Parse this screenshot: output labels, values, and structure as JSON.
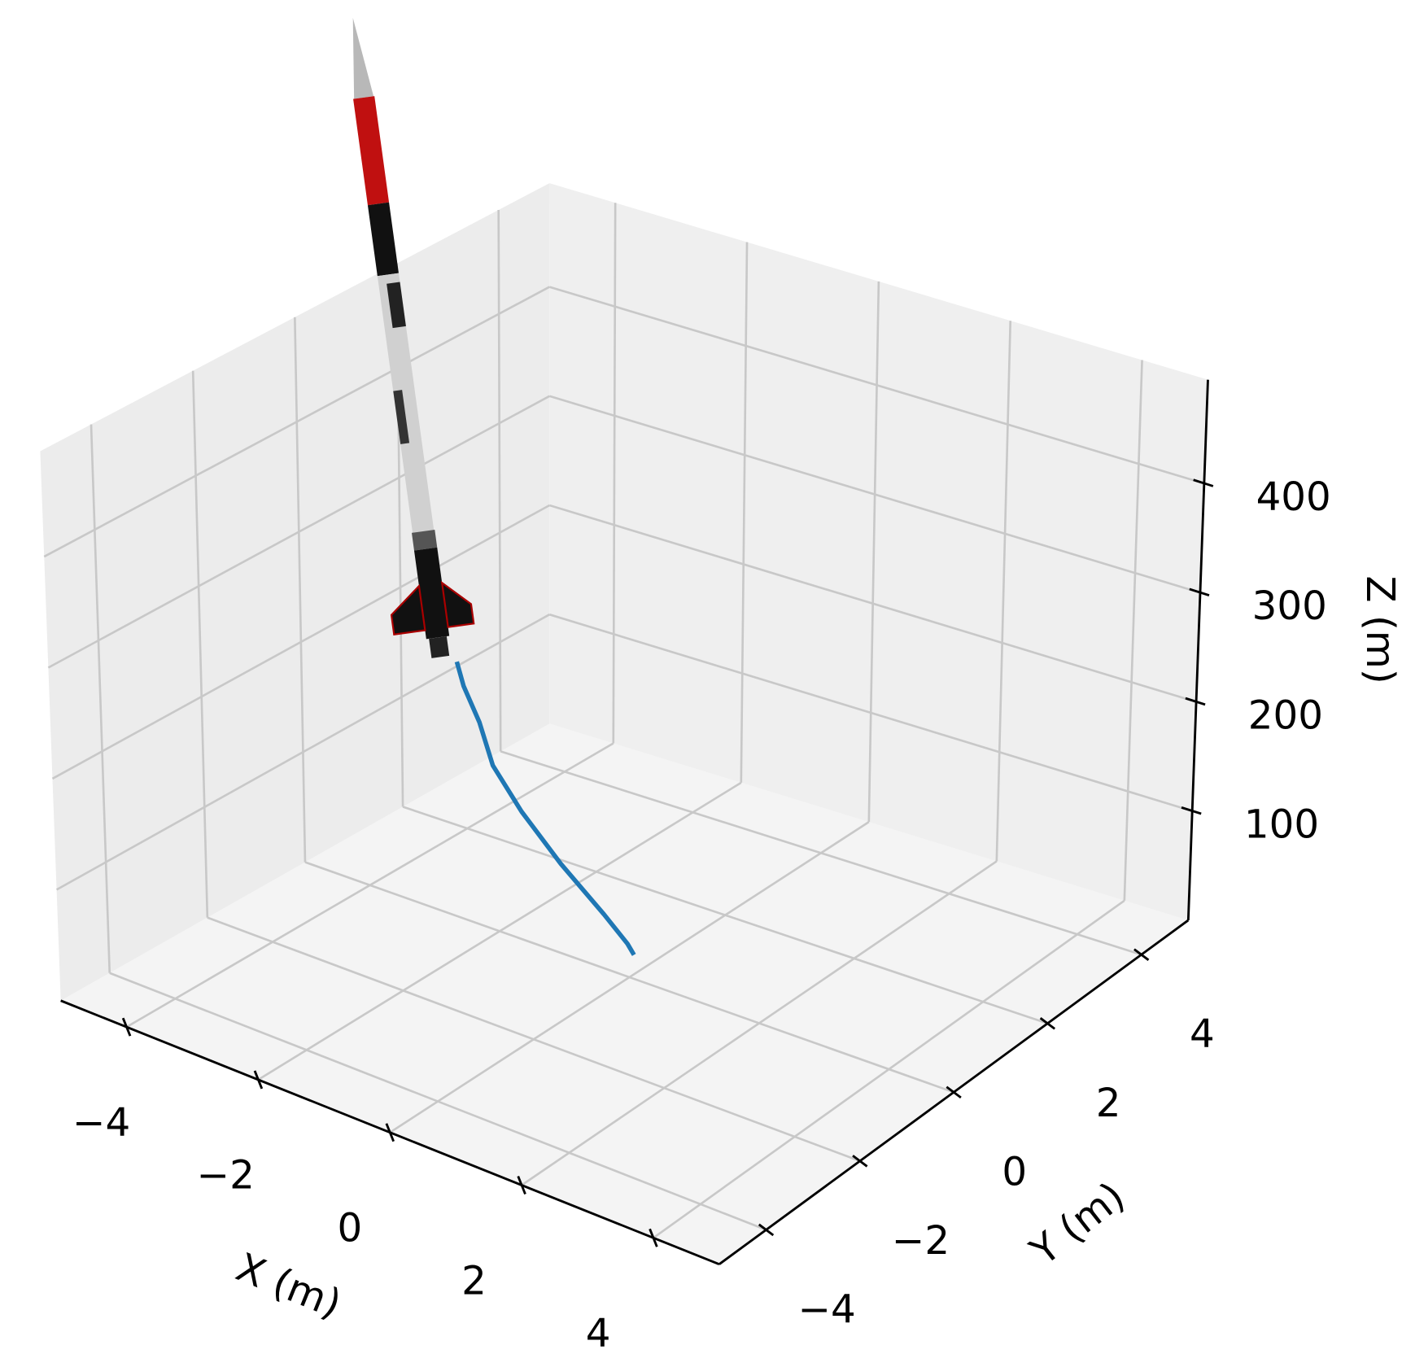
{
  "chart_data": {
    "type": "line3d",
    "xlabel": "X (m)",
    "ylabel": "Y (m)",
    "zlabel": "Z (m)",
    "x": [
      -0.3,
      -0.4,
      -0.8,
      -1.5,
      -2.1,
      -2.5,
      -2.7,
      -2.9,
      -3.0
    ],
    "y": [
      0.5,
      0.5,
      0.55,
      0.6,
      0.6,
      0.55,
      0.55,
      0.5,
      0.5
    ],
    "z": [
      0,
      8,
      25,
      55,
      90,
      125,
      160,
      190,
      210
    ],
    "color": "#1f77b4",
    "xlim": [
      -5,
      5
    ],
    "ylim": [
      -5,
      5
    ],
    "zlim": [
      0,
      495
    ],
    "xticks": [
      {
        "value": -4,
        "label": "−4"
      },
      {
        "value": -2,
        "label": "−2"
      },
      0,
      2,
      4
    ],
    "yticks": [
      {
        "value": -4,
        "label": "−4"
      },
      {
        "value": -2,
        "label": "−2"
      },
      0,
      2,
      4
    ],
    "zticks": [
      100,
      200,
      300,
      400
    ],
    "grid": true
  }
}
